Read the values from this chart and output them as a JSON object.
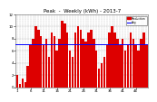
{
  "title": "Peak  -  Weekly (kWh) - 2013-7",
  "background_color": "#ffffff",
  "bar_color": "#dd0000",
  "avg_line_color": "#0000ff",
  "values": [
    2,
    0.5,
    1.5,
    0.8,
    3.5,
    7,
    8,
    10,
    9.5,
    8.5,
    7,
    8,
    5,
    9,
    8.5,
    6,
    8,
    11,
    10.5,
    9,
    6,
    5,
    9,
    10,
    9.5,
    8,
    7.5,
    9,
    9.5,
    8,
    6,
    3,
    4,
    5,
    7,
    9,
    10,
    9,
    8,
    7,
    8,
    6,
    7,
    9,
    8,
    7,
    6,
    8,
    9,
    7
  ],
  "ylim": [
    0,
    12
  ],
  "yticks": [
    0,
    2,
    4,
    6,
    8,
    10,
    12
  ],
  "title_fontsize": 4.0,
  "tick_fontsize": 2.8,
  "legend_items": [
    {
      "label": "Production",
      "color": "#dd0000"
    },
    {
      "label": "Avg",
      "color": "#0000ff"
    }
  ],
  "grid_color": "#aaaaaa",
  "bar_width": 0.85
}
